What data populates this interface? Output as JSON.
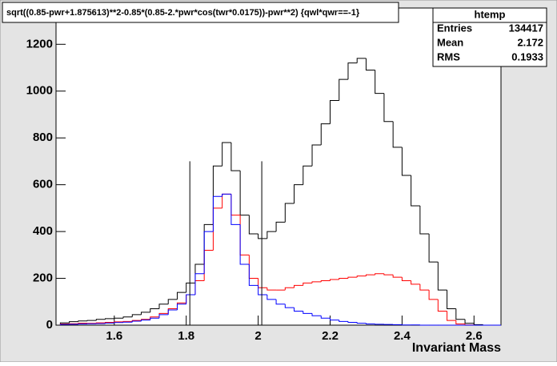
{
  "chart_data": {
    "type": "histogram",
    "title": "sqrt((0.85-pwr+1.875613)**2-0.85*(0.85-2.*pwr*cos(twr*0.0175))-pwr**2) {qwl*qwr==-1}",
    "x_label": "Invariant Mass",
    "stats": {
      "name": "htemp",
      "rows": [
        [
          "Entries",
          "134417"
        ],
        [
          "Mean",
          "2.172"
        ],
        [
          "RMS",
          "0.1933"
        ]
      ]
    },
    "bins": [
      1.45,
      1.475,
      1.5,
      1.525,
      1.55,
      1.575,
      1.6,
      1.625,
      1.65,
      1.675,
      1.7,
      1.725,
      1.75,
      1.775,
      1.8,
      1.825,
      1.85,
      1.875,
      1.9,
      1.925,
      1.95,
      1.975,
      2.0,
      2.025,
      2.05,
      2.075,
      2.1,
      2.125,
      2.15,
      2.175,
      2.2,
      2.225,
      2.25,
      2.275,
      2.3,
      2.325,
      2.35,
      2.375,
      2.4,
      2.425,
      2.45,
      2.475,
      2.5,
      2.525,
      2.55,
      2.575,
      2.6,
      2.625,
      2.65,
      2.675
    ],
    "series": [
      {
        "color": "#000000",
        "values": [
          10,
          15,
          18,
          20,
          25,
          28,
          30,
          35,
          45,
          55,
          70,
          90,
          110,
          140,
          180,
          260,
          430,
          680,
          780,
          660,
          470,
          390,
          370,
          400,
          440,
          520,
          600,
          680,
          770,
          860,
          960,
          1050,
          1120,
          1140,
          1090,
          990,
          870,
          760,
          640,
          510,
          390,
          270,
          150,
          70,
          25,
          8,
          2,
          0,
          0
        ]
      },
      {
        "color": "#ff0000",
        "values": [
          5,
          6,
          8,
          8,
          10,
          12,
          14,
          16,
          20,
          25,
          35,
          50,
          70,
          95,
          130,
          190,
          320,
          500,
          560,
          470,
          300,
          200,
          160,
          150,
          150,
          160,
          170,
          180,
          185,
          190,
          195,
          200,
          205,
          210,
          215,
          220,
          215,
          205,
          190,
          175,
          150,
          110,
          60,
          20,
          5,
          1,
          0,
          0,
          0
        ]
      },
      {
        "color": "#0000ff",
        "values": [
          3,
          4,
          5,
          6,
          7,
          9,
          11,
          13,
          17,
          22,
          30,
          45,
          65,
          90,
          130,
          220,
          400,
          550,
          560,
          430,
          260,
          170,
          130,
          110,
          90,
          75,
          60,
          50,
          40,
          30,
          22,
          16,
          12,
          8,
          5,
          4,
          3,
          2,
          1,
          1,
          0,
          0,
          0,
          0,
          0,
          0,
          0,
          0,
          0
        ]
      }
    ],
    "cut_lines": {
      "x": [
        1.81,
        2.01
      ],
      "height": 700
    },
    "xlim": [
      1.438,
      2.675
    ],
    "ylim": [
      0,
      1355
    ],
    "xticks": [
      1.6,
      1.8,
      2,
      2.2,
      2.4,
      2.6
    ],
    "yticks": [
      0,
      200,
      400,
      600,
      800,
      1000,
      1200
    ]
  }
}
